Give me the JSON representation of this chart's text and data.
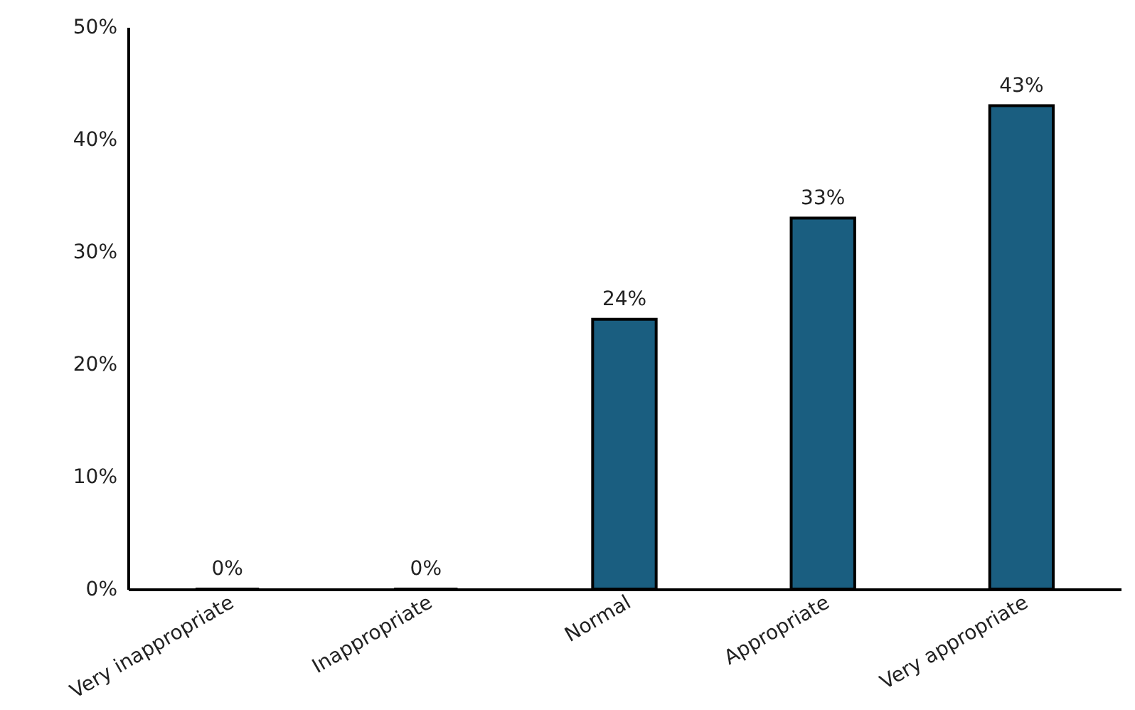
{
  "chart_data": {
    "type": "bar",
    "categories": [
      "Very inappropriate",
      "Inappropriate",
      "Normal",
      "Appropriate",
      "Very appropriate"
    ],
    "values": [
      0,
      0,
      24,
      33,
      43
    ],
    "value_labels": [
      "0%",
      "0%",
      "24%",
      "33%",
      "43%"
    ],
    "color": "#1a5e80",
    "ylim": [
      0,
      50
    ],
    "yticks": [
      {
        "value": 0,
        "label": "0%"
      },
      {
        "value": 10,
        "label": "10%"
      },
      {
        "value": 20,
        "label": "20%"
      },
      {
        "value": 30,
        "label": "30%"
      },
      {
        "value": 40,
        "label": "40%"
      },
      {
        "value": 50,
        "label": "50%"
      }
    ],
    "grid": false
  }
}
